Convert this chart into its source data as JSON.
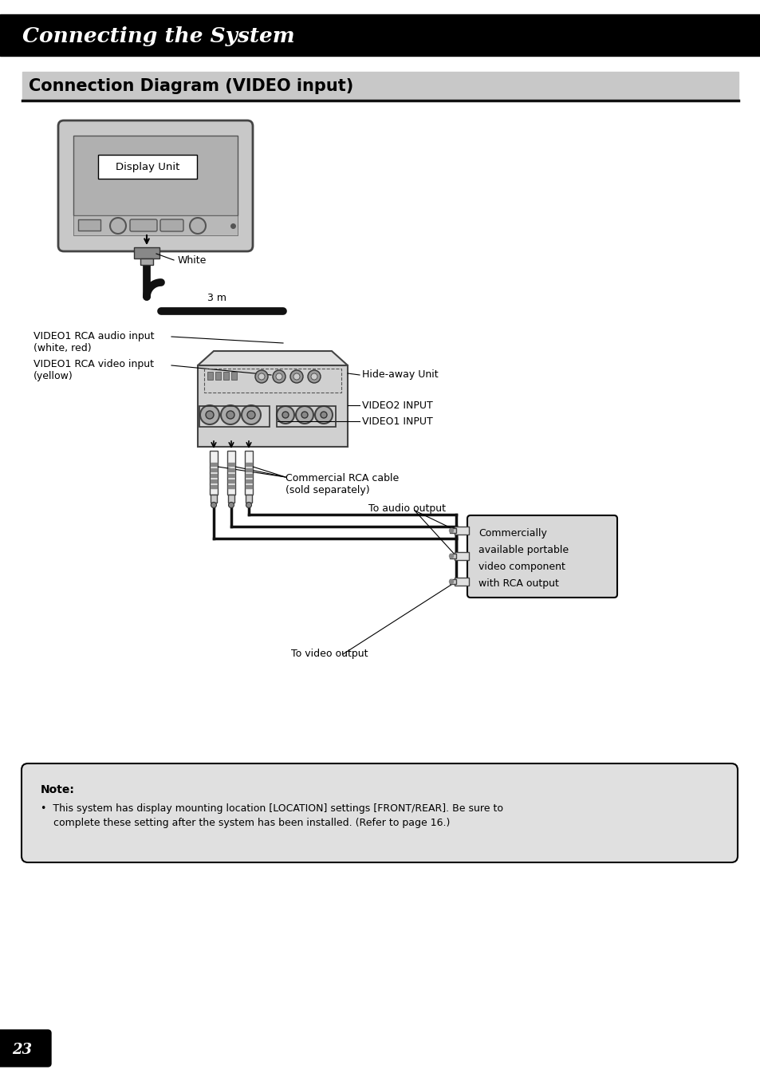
{
  "page_bg": "#ffffff",
  "header_bg": "#000000",
  "header_text": "Connecting the System",
  "header_text_color": "#ffffff",
  "section_title": "Connection Diagram (VIDEO input)",
  "section_title_bg": "#c8c8c8",
  "section_title_color": "#000000",
  "note_bg": "#e0e0e0",
  "note_border": "#000000",
  "note_title": "Note:",
  "note_bullet": "•  This system has display mounting location [LOCATION] settings [FRONT/REAR]. Be sure to\n    complete these setting after the system has been installed. (Refer to page 16.)",
  "page_number": "23",
  "labels": {
    "display_unit": "Display Unit",
    "white": "White",
    "three_m": "3 m",
    "video1_audio": "VIDEO1 RCA audio input\n(white, red)",
    "video1_video": "VIDEO1 RCA video input\n(yellow)",
    "hide_away": "Hide-away Unit",
    "video2_input": "VIDEO2 INPUT",
    "video1_input": "VIDEO1 INPUT",
    "commercial_rca": "Commercial RCA cable\n(sold separately)",
    "to_audio": "To audio output",
    "to_video": "To video output",
    "commercially": "Commercially\navailable portable\nvideo component\nwith RCA output"
  }
}
